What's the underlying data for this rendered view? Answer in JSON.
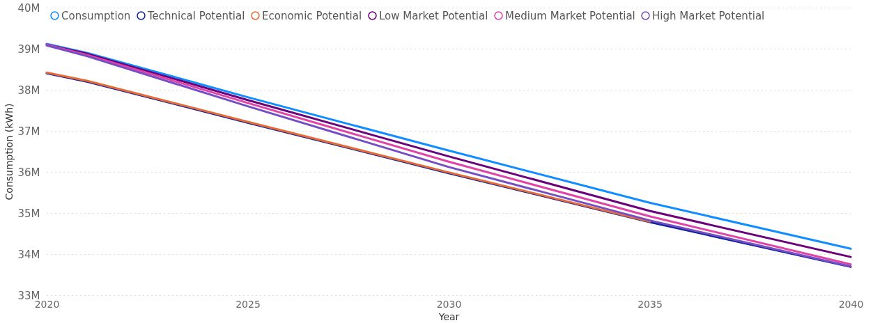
{
  "chart_data": {
    "type": "line",
    "xlabel": "Year",
    "ylabel": "Consumption (kWh)",
    "x": [
      2020,
      2021,
      2025,
      2030,
      2035,
      2040
    ],
    "series": [
      {
        "name": "Consumption",
        "color": "#118dff",
        "values": [
          39120000,
          38900000,
          37820000,
          36520000,
          35250000,
          34130000
        ]
      },
      {
        "name": "Technical Potential",
        "color": "#12239e",
        "values": [
          38400000,
          38200000,
          37200000,
          35970000,
          34780000,
          33690000
        ]
      },
      {
        "name": "Economic Potential",
        "color": "#e66c37",
        "values": [
          38420000,
          38220000,
          37220000,
          35990000,
          34790000,
          null
        ]
      },
      {
        "name": "Low Market Potential",
        "color": "#6b007b",
        "values": [
          39100000,
          38880000,
          37750000,
          36380000,
          35050000,
          33930000
        ]
      },
      {
        "name": "Medium Market Potential",
        "color": "#e044a7",
        "values": [
          39100000,
          38850000,
          37680000,
          36250000,
          34920000,
          33750000
        ]
      },
      {
        "name": "High Market Potential",
        "color": "#744ec2",
        "values": [
          39080000,
          38820000,
          37600000,
          36120000,
          34820000,
          33700000
        ]
      }
    ],
    "xlim": [
      2020,
      2040
    ],
    "xticks": [
      2020,
      2025,
      2030,
      2035,
      2040
    ],
    "ylim": [
      33000000,
      40000000
    ],
    "yticks": [
      {
        "value": 33000000,
        "label": "33M"
      },
      {
        "value": 34000000,
        "label": "34M"
      },
      {
        "value": 35000000,
        "label": "35M"
      },
      {
        "value": 36000000,
        "label": "36M"
      },
      {
        "value": 37000000,
        "label": "37M"
      },
      {
        "value": 38000000,
        "label": "38M"
      },
      {
        "value": 39000000,
        "label": "39M"
      },
      {
        "value": 40000000,
        "label": "40M"
      }
    ],
    "grid": "y",
    "legend": "top left",
    "marker": "none",
    "line_style": "solid"
  }
}
